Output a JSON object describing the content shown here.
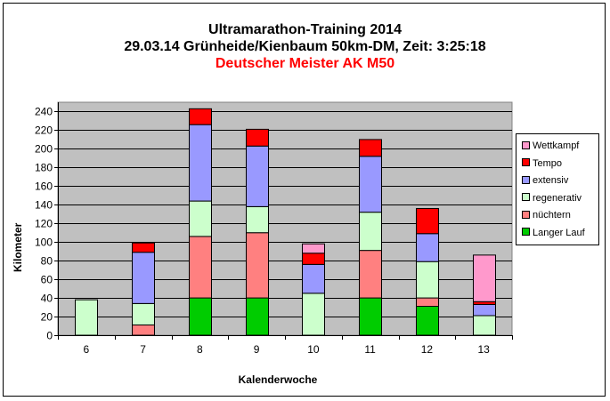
{
  "titles": {
    "line1": "Ultramarathon-Training 2014",
    "line2": "29.03.14 Grünheide/Kienbaum 50km-DM, Zeit: 3:25:18",
    "line3": "Deutscher Meister AK M50",
    "line1_color": "#000000",
    "line2_color": "#000000",
    "line3_color": "#ff0000"
  },
  "chart_data": {
    "type": "bar",
    "stacked": true,
    "categories": [
      "6",
      "7",
      "8",
      "9",
      "10",
      "11",
      "12",
      "13"
    ],
    "xlabel": "Kalenderwoche",
    "ylabel": "Kilometer",
    "ylim": [
      0,
      250
    ],
    "yticks": [
      0,
      20,
      40,
      60,
      80,
      100,
      120,
      140,
      160,
      180,
      200,
      220,
      240
    ],
    "grid": true,
    "plot_background": "#c0c0c0",
    "legend_placement": "right",
    "series": [
      {
        "name": "Langer Lauf",
        "color": "#00cc00",
        "values": [
          0,
          0,
          40,
          40,
          0,
          40,
          31,
          0
        ]
      },
      {
        "name": "nüchtern",
        "color": "#ff8080",
        "values": [
          0,
          11,
          66,
          70,
          0,
          51,
          9,
          0
        ]
      },
      {
        "name": "regenerativ",
        "color": "#ccffcc",
        "values": [
          38,
          23,
          38,
          28,
          45,
          41,
          39,
          21
        ]
      },
      {
        "name": "extensiv",
        "color": "#9999ff",
        "values": [
          0,
          55,
          82,
          65,
          31,
          60,
          30,
          12
        ]
      },
      {
        "name": "Tempo",
        "color": "#ff0000",
        "values": [
          0,
          10,
          17,
          18,
          12,
          18,
          27,
          3
        ]
      },
      {
        "name": "Wettkampf",
        "color": "#ff99cc",
        "values": [
          0,
          0,
          0,
          0,
          10,
          0,
          0,
          50
        ]
      }
    ]
  }
}
